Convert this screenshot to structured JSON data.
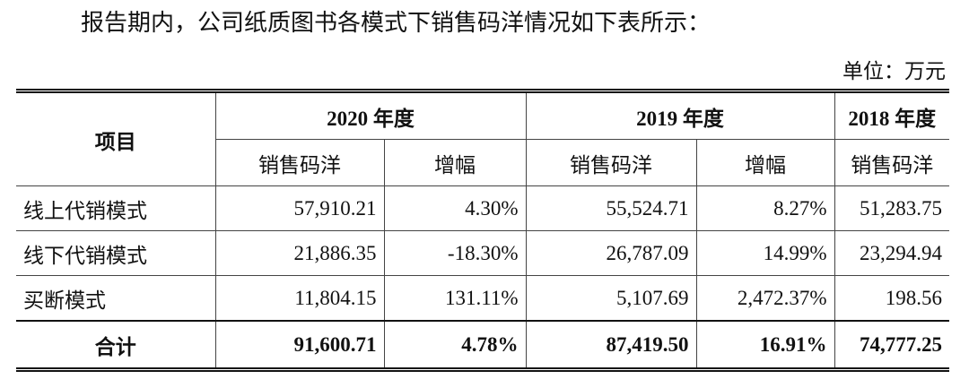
{
  "intro_text": "报告期内，公司纸质图书各模式下销售码洋情况如下表所示：",
  "unit_text": "单位：万元",
  "table": {
    "item_header": "项目",
    "years": [
      {
        "label": "2020 年度"
      },
      {
        "label": "2019 年度"
      },
      {
        "label": "2018 年度"
      }
    ],
    "sub_headers": [
      "销售码洋",
      "增幅",
      "销售码洋",
      "增幅",
      "销售码洋"
    ],
    "rows": [
      {
        "label": "线上代销模式",
        "v2020": "57,910.21",
        "g2020": "4.30%",
        "v2019": "55,524.71",
        "g2019": "8.27%",
        "v2018": "51,283.75"
      },
      {
        "label": "线下代销模式",
        "v2020": "21,886.35",
        "g2020": "-18.30%",
        "v2019": "26,787.09",
        "g2019": "14.99%",
        "v2018": "23,294.94"
      },
      {
        "label": "买断模式",
        "v2020": "11,804.15",
        "g2020": "131.11%",
        "v2019": "5,107.69",
        "g2019": "2,472.37%",
        "v2018": "198.56"
      }
    ],
    "total": {
      "label": "合计",
      "v2020": "91,600.71",
      "g2020": "4.78%",
      "v2019": "87,419.50",
      "g2019": "16.91%",
      "v2018": "74,777.25"
    }
  }
}
